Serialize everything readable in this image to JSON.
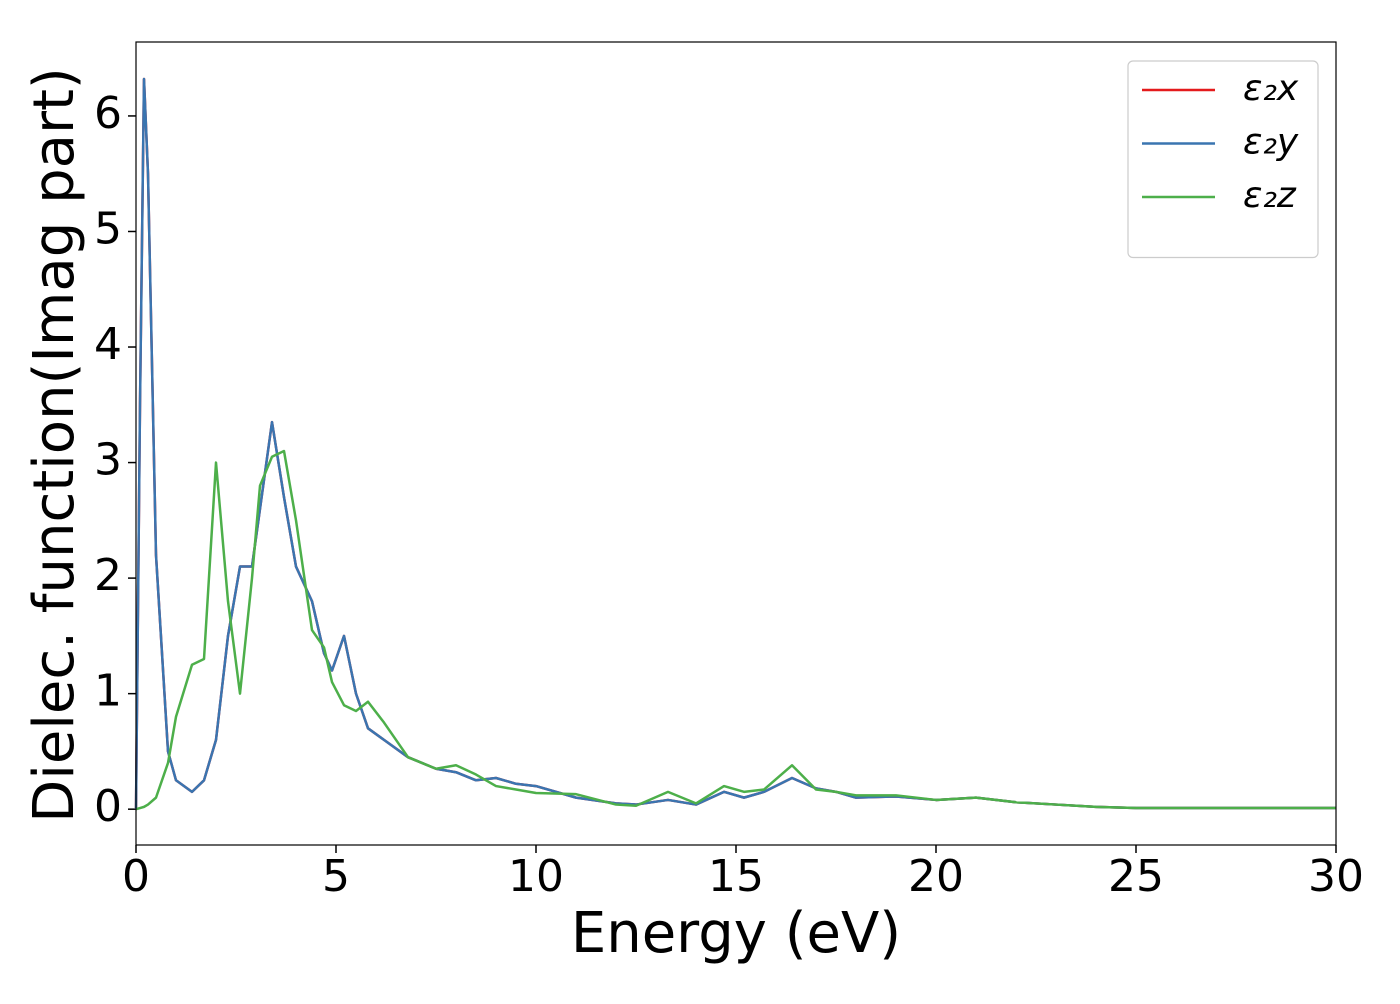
{
  "chart_data": {
    "type": "line",
    "xlabel": "Energy (eV)",
    "ylabel": "Dielec. function(Imag part)",
    "x": [
      0,
      0.1,
      0.2,
      0.3,
      0.5,
      0.8,
      1.0,
      1.4,
      1.7,
      2.0,
      2.3,
      2.6,
      2.9,
      3.1,
      3.4,
      3.7,
      4.0,
      4.4,
      4.7,
      4.9,
      5.2,
      5.5,
      5.8,
      6.2,
      6.8,
      7.5,
      8,
      8.5,
      9,
      9.5,
      10,
      11,
      12,
      12.5,
      13.3,
      14,
      14.7,
      15.2,
      15.7,
      16.4,
      17,
      17.5,
      18,
      19,
      20,
      21,
      22,
      23,
      24,
      25,
      30
    ],
    "series": [
      {
        "name": "ε₂x",
        "color": "#e41a1c",
        "values": [
          0,
          3.5,
          6.32,
          5.5,
          2.2,
          0.5,
          0.25,
          0.15,
          0.25,
          0.6,
          1.5,
          2.1,
          2.1,
          2.6,
          3.35,
          2.7,
          2.1,
          1.8,
          1.35,
          1.2,
          1.5,
          1.0,
          0.7,
          0.6,
          0.45,
          0.35,
          0.32,
          0.25,
          0.27,
          0.22,
          0.2,
          0.1,
          0.05,
          0.04,
          0.08,
          0.04,
          0.15,
          0.1,
          0.15,
          0.27,
          0.18,
          0.15,
          0.1,
          0.11,
          0.08,
          0.1,
          0.06,
          0.04,
          0.02,
          0.01,
          0.01
        ]
      },
      {
        "name": "ε₂y",
        "color": "#3a75b0",
        "values": [
          0,
          3.5,
          6.32,
          5.5,
          2.2,
          0.5,
          0.25,
          0.15,
          0.25,
          0.6,
          1.5,
          2.1,
          2.1,
          2.6,
          3.35,
          2.7,
          2.1,
          1.8,
          1.35,
          1.2,
          1.5,
          1.0,
          0.7,
          0.6,
          0.45,
          0.35,
          0.32,
          0.25,
          0.27,
          0.22,
          0.2,
          0.1,
          0.05,
          0.04,
          0.08,
          0.04,
          0.15,
          0.1,
          0.15,
          0.27,
          0.18,
          0.15,
          0.1,
          0.11,
          0.08,
          0.1,
          0.06,
          0.04,
          0.02,
          0.01,
          0.01
        ]
      },
      {
        "name": "ε₂z",
        "color": "#4daf4a",
        "values": [
          0,
          0.01,
          0.02,
          0.04,
          0.1,
          0.4,
          0.8,
          1.25,
          1.3,
          3.0,
          1.8,
          1.0,
          2.0,
          2.8,
          3.05,
          3.1,
          2.5,
          1.55,
          1.4,
          1.1,
          0.9,
          0.85,
          0.93,
          0.75,
          0.45,
          0.35,
          0.38,
          0.3,
          0.2,
          0.17,
          0.14,
          0.13,
          0.04,
          0.03,
          0.15,
          0.05,
          0.2,
          0.15,
          0.17,
          0.38,
          0.17,
          0.15,
          0.12,
          0.12,
          0.08,
          0.1,
          0.06,
          0.04,
          0.02,
          0.01,
          0.01
        ]
      }
    ],
    "xlim": [
      0,
      30
    ],
    "xticks": [
      0,
      5,
      10,
      15,
      20,
      25,
      30
    ],
    "ylim": [
      -0.31,
      6.64
    ],
    "yticks": [
      0,
      1,
      2,
      3,
      4,
      5,
      6
    ],
    "legend": "upper right"
  }
}
